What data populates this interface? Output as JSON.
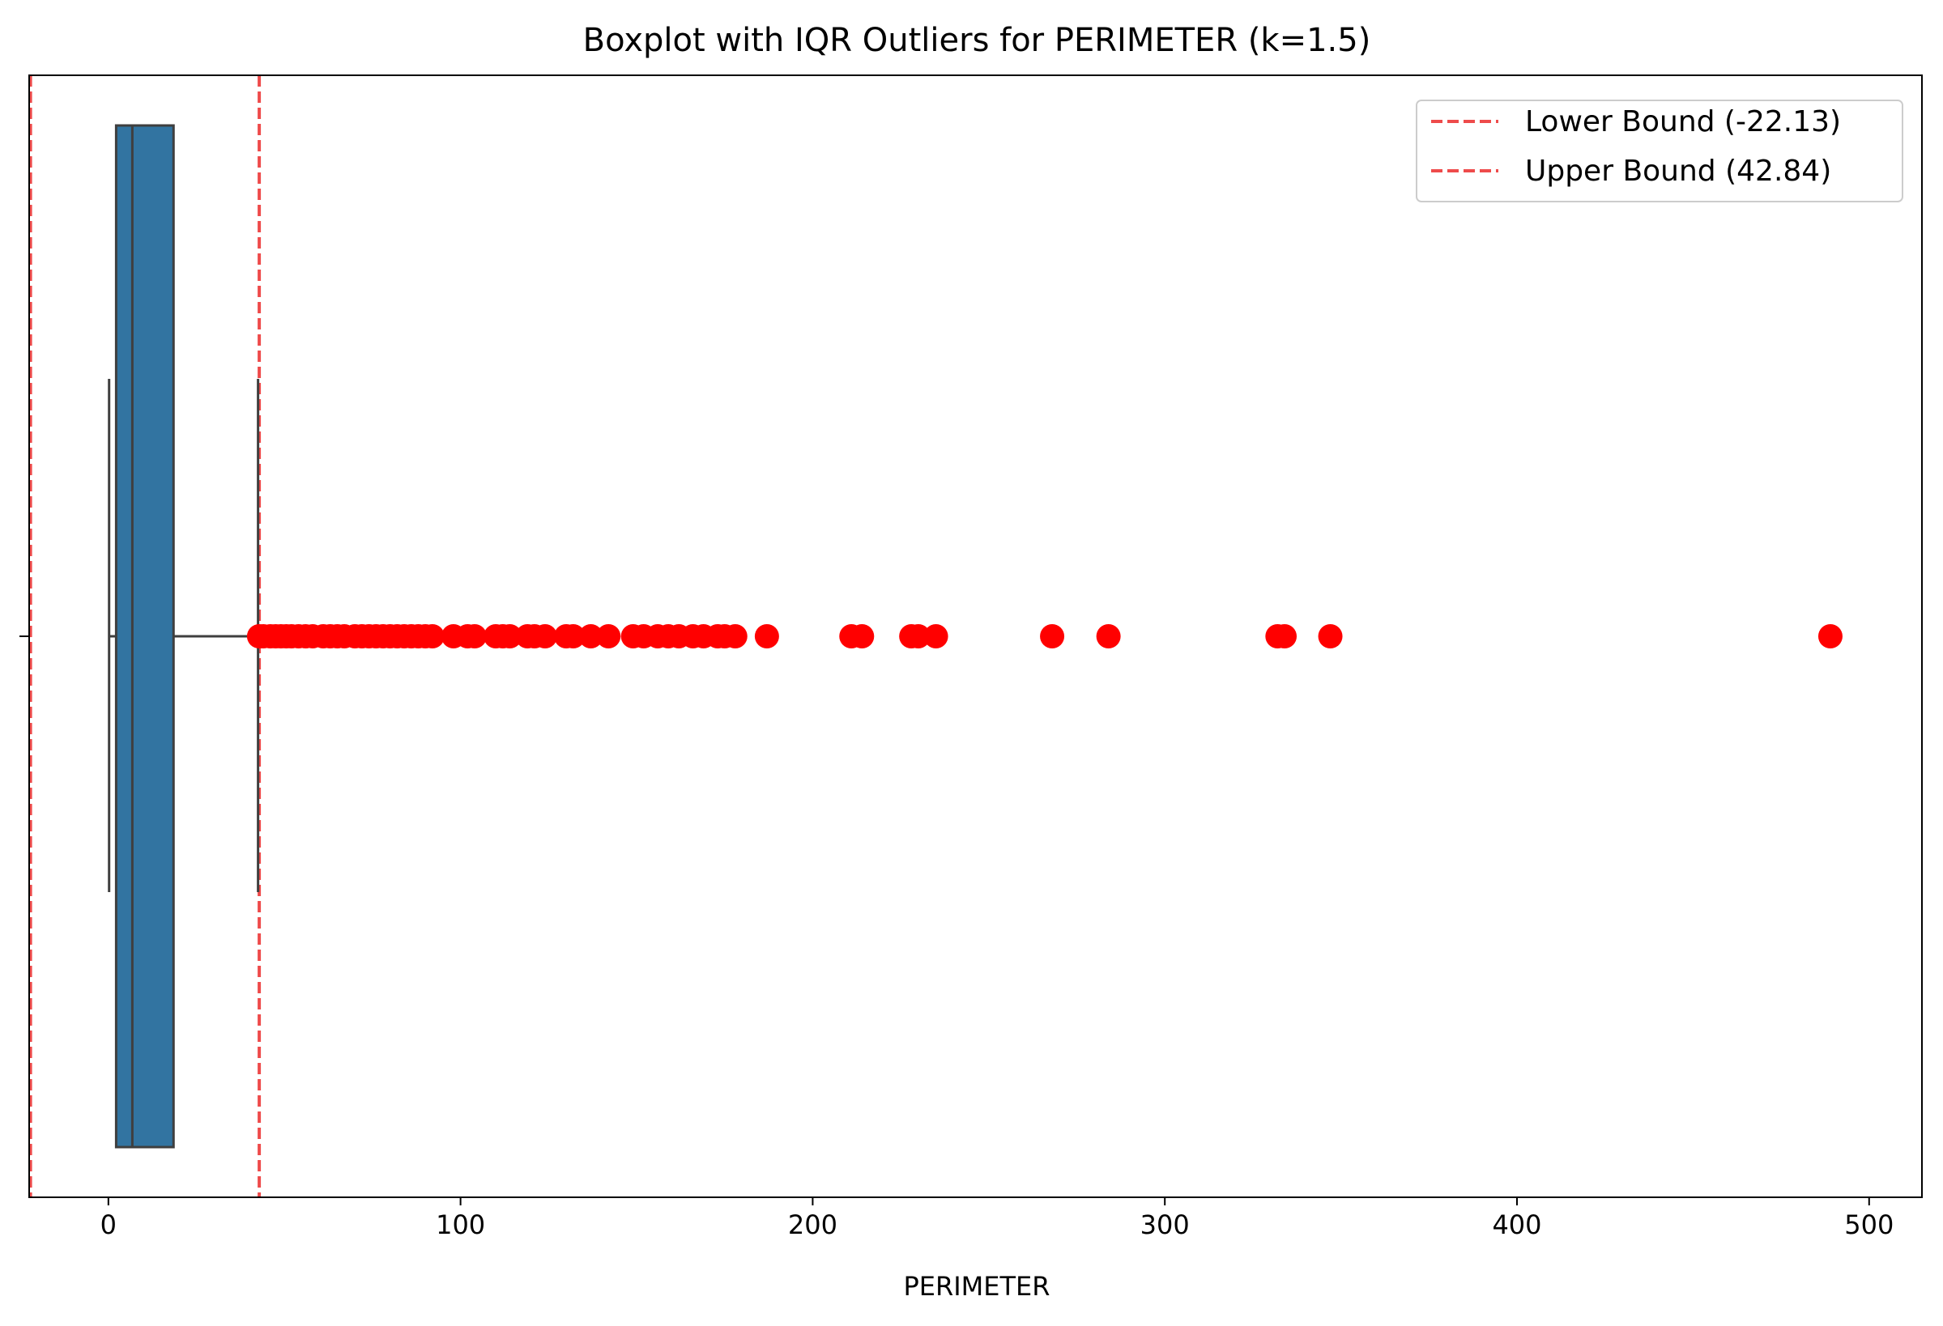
{
  "chart_data": {
    "type": "boxplot",
    "title": "Boxplot with IQR Outliers for PERIMETER (k=1.5)",
    "xlabel": "PERIMETER",
    "ylabel": "",
    "xlim": [
      -22.5,
      515
    ],
    "x_ticks": [
      0,
      100,
      200,
      300,
      400,
      500
    ],
    "x_tick_labels": [
      "0",
      "100",
      "200",
      "300",
      "400",
      "500"
    ],
    "grid": false,
    "legend_position": "upper-right",
    "box": {
      "whisker_low": 0.2,
      "q1": 2.2,
      "median": 6.8,
      "q3": 18.5,
      "whisker_high": 42.5,
      "color": "#3274a1",
      "edge_color": "#3f3f3f"
    },
    "bounds": [
      {
        "name": "Lower Bound (-22.13)",
        "value": -22.13,
        "color": "#ee4b4b"
      },
      {
        "name": "Upper Bound (42.84)",
        "value": 42.84,
        "color": "#ee4b4b"
      }
    ],
    "outliers": {
      "color": "#ff0000",
      "values": [
        42.8,
        44,
        46,
        47.5,
        49,
        50.5,
        52,
        54,
        56,
        58,
        61,
        63,
        65,
        67,
        70,
        72,
        74,
        76,
        78,
        80,
        82,
        84,
        86,
        88,
        90,
        92,
        98,
        102,
        104,
        110,
        112,
        114,
        119,
        121,
        124,
        130,
        132,
        137,
        142,
        149,
        152,
        156,
        159,
        162,
        166,
        169,
        173,
        175,
        178,
        187,
        211,
        214,
        228,
        230,
        235,
        268,
        284,
        332,
        334,
        347,
        489
      ]
    }
  }
}
